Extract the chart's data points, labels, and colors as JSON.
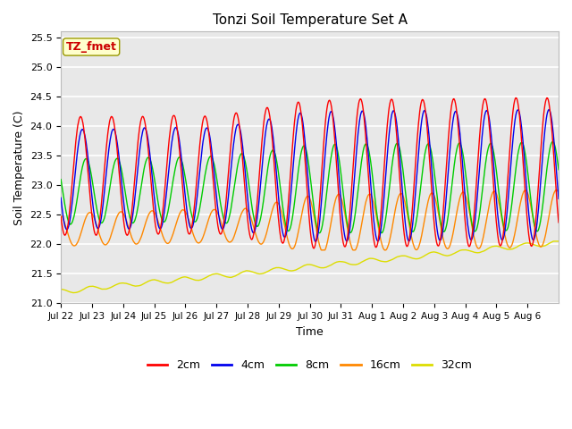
{
  "title": "Tonzi Soil Temperature Set A",
  "xlabel": "Time",
  "ylabel": "Soil Temperature (C)",
  "ylim": [
    21.0,
    25.6
  ],
  "xtick_labels": [
    "Jul 22",
    "Jul 23",
    "Jul 24",
    "Jul 25",
    "Jul 26",
    "Jul 27",
    "Jul 28",
    "Jul 29",
    "Jul 30",
    "Jul 31",
    "Aug 1",
    "Aug 2",
    "Aug 3",
    "Aug 4",
    "Aug 5",
    "Aug 6"
  ],
  "legend_labels": [
    "2cm",
    "4cm",
    "8cm",
    "16cm",
    "32cm"
  ],
  "line_colors": [
    "#ff0000",
    "#0000ee",
    "#00cc00",
    "#ff8800",
    "#dddd00"
  ],
  "annotation_text": "TZ_fmet",
  "annotation_color": "#cc0000",
  "annotation_bg": "#ffffcc",
  "plot_bg": "#e8e8e8",
  "fig_bg": "#ffffff"
}
